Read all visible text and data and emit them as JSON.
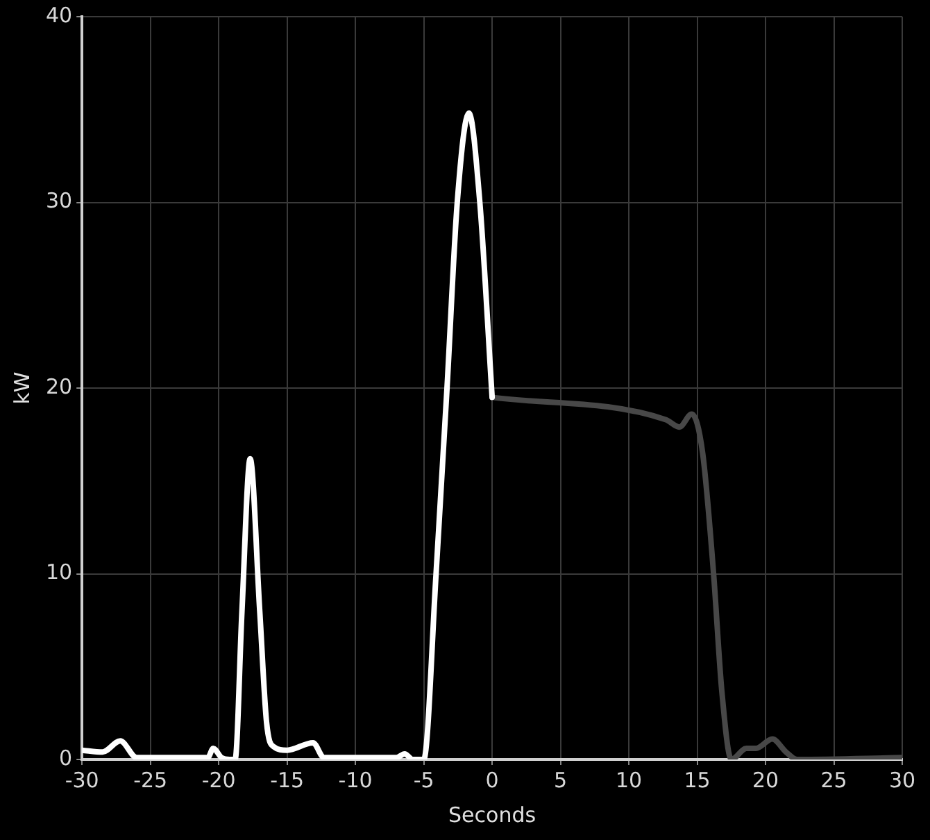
{
  "chart_data": {
    "type": "line",
    "xlabel": "Seconds",
    "ylabel": "kW",
    "xlim": [
      -30,
      30
    ],
    "xticks": [
      -30,
      -25,
      -20,
      -15,
      -10,
      -5,
      0,
      5,
      10,
      15,
      20,
      25,
      30
    ],
    "ylim": [
      0,
      40
    ],
    "yticks": [
      0,
      10,
      20,
      30,
      40
    ],
    "grid": true,
    "legend": false,
    "marker": "none",
    "line_style": "solid",
    "series": [
      {
        "color": "#ffffff",
        "x": [
          -30,
          -28.5,
          -27.2,
          -26,
          -22,
          -20.8,
          -20.4,
          -19.8,
          -19.2,
          -18.8,
          -18.3,
          -17.7,
          -17,
          -16.5,
          -16,
          -15,
          -13.1,
          -12.3,
          -7,
          -6.4,
          -5.8,
          -5,
          -4.1,
          -3.3,
          -2.55,
          -1.7,
          -0.9,
          0
        ],
        "values": [
          0.5,
          0.4,
          1,
          0.1,
          0.1,
          0.1,
          0.6,
          0.1,
          0,
          0,
          8,
          16.2,
          8,
          2,
          0.7,
          0.5,
          0.9,
          0.1,
          0.1,
          0.3,
          0,
          0,
          10,
          20,
          30,
          34.8,
          30,
          19.5
        ]
      },
      {
        "color": "#484848",
        "x": [
          0,
          12.7,
          13.7,
          14.6,
          15.4,
          16.2,
          16.8,
          17.5,
          18.6,
          19.3,
          20.5,
          21.5,
          22.3,
          30
        ],
        "values": [
          19.5,
          18.3,
          17.9,
          18.6,
          16.5,
          10,
          3.7,
          0,
          0.6,
          0.6,
          1.1,
          0.4,
          0,
          0.1
        ]
      }
    ]
  }
}
